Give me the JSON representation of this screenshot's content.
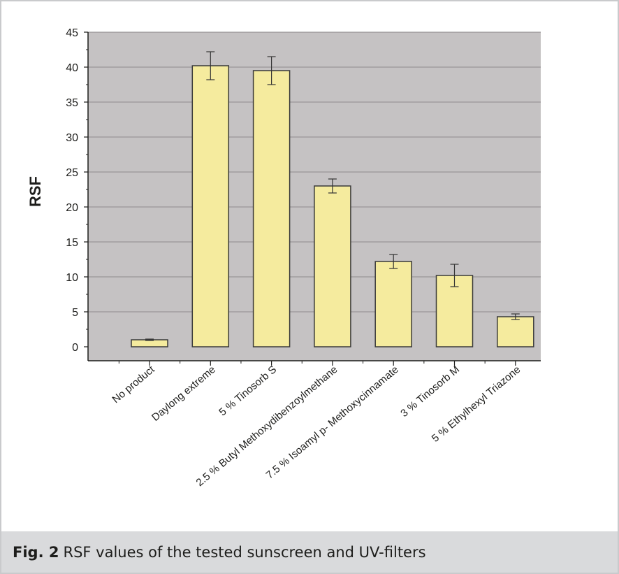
{
  "figure": {
    "caption_label": "Fig. 2",
    "caption_text": "RSF values of the tested sunscreen and UV-filters"
  },
  "colors": {
    "plot_background": "#c5c2c3",
    "bar_fill": "#f5eb9e",
    "bar_stroke": "#3a3a3a",
    "grid": "#8e8b8c",
    "caption_background": "#d9dadc"
  },
  "chart_data": {
    "type": "bar",
    "ylabel": "RSF",
    "xlabel": "",
    "ylim": [
      0,
      45
    ],
    "yticks": [
      0,
      5,
      10,
      15,
      20,
      25,
      30,
      35,
      40,
      45
    ],
    "grid": true,
    "categories": [
      "No product",
      "Daylong extreme",
      "5 % Tinosorb S",
      "2.5 % Butyl Methoxydibenzoylmethane",
      "7.5 % Isoamyl p- Methoxycinnamate",
      "3 % Tinosorb M",
      "5 % Ethylhexyl Triazone"
    ],
    "values": [
      1.0,
      40.2,
      39.5,
      23.0,
      12.2,
      10.2,
      4.3
    ],
    "error": [
      0.1,
      2.0,
      2.0,
      1.0,
      1.0,
      1.6,
      0.4
    ]
  }
}
